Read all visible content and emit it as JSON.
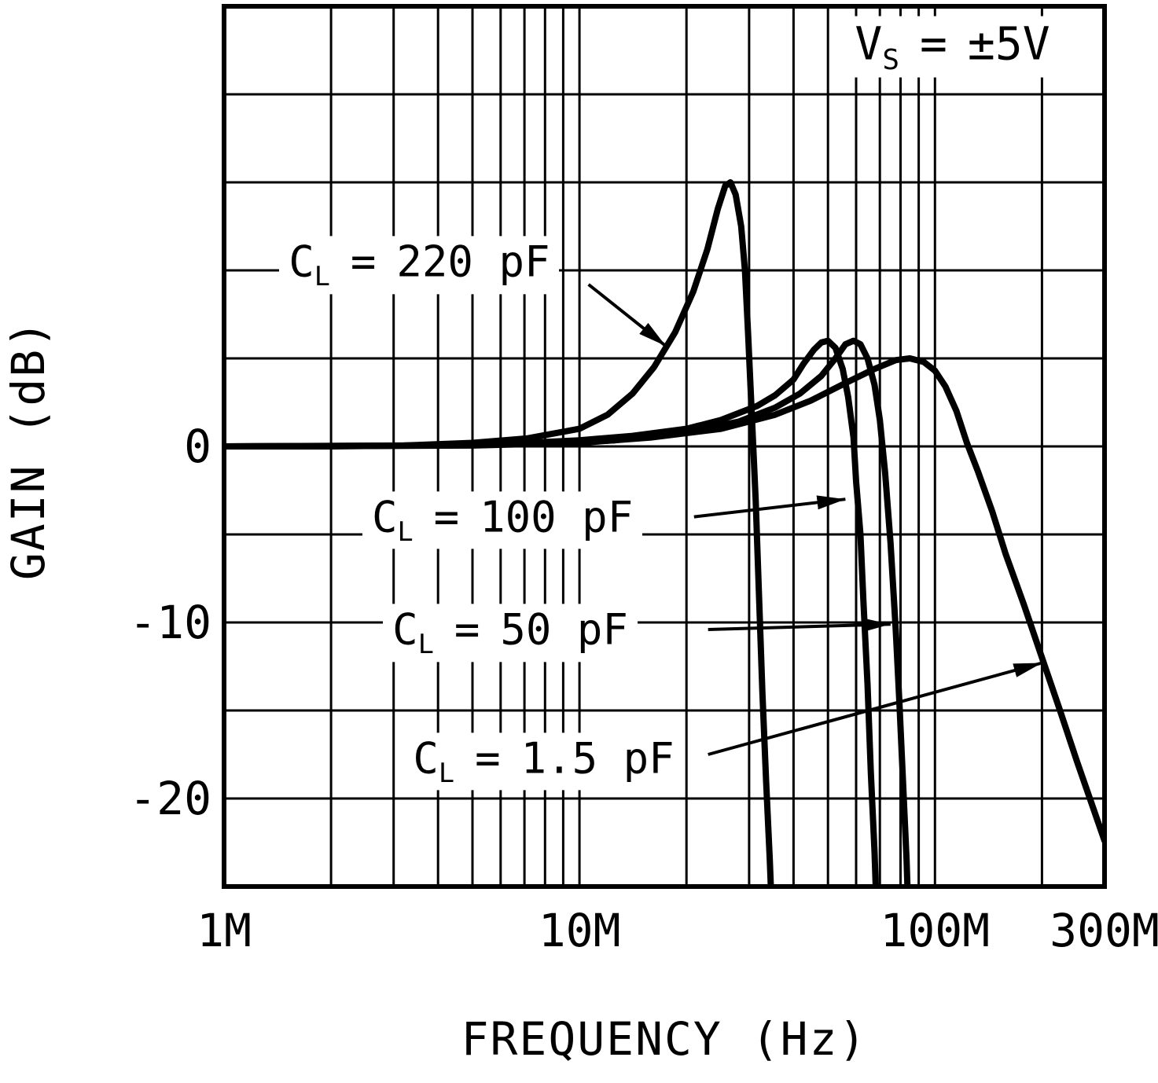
{
  "figure": {
    "x_axis_title": "FREQUENCY (Hz)",
    "y_axis_title": "GAIN (dB)"
  },
  "chart_data": {
    "type": "line",
    "x_scale": "log",
    "x_unit": "Hz",
    "y_unit": "dB",
    "x_range_hz": [
      1000000.0,
      300000000.0
    ],
    "y_range_db": [
      -25,
      25
    ],
    "y_grid_step_db": 5,
    "grid": true,
    "line_color": "#000000",
    "x_tick_labels": [
      {
        "f": 1000000.0,
        "label": "1M"
      },
      {
        "f": 10000000.0,
        "label": "10M"
      },
      {
        "f": 100000000.0,
        "label": "100M"
      },
      {
        "f": 300000000.0,
        "label": "300M"
      }
    ],
    "y_tick_labels": [
      {
        "g": 0,
        "label": "0"
      },
      {
        "g": -10,
        "label": "-10"
      },
      {
        "g": -20,
        "label": "-20"
      }
    ],
    "supply_note": {
      "c": "V",
      "sub": "S",
      "eq": "=",
      "val": "±5V",
      "anchor": {
        "f": 56000000.0,
        "g": 22.7
      }
    },
    "series": [
      {
        "name": "CL = 220 pF",
        "capacitance_pF": 220,
        "points": [
          [
            1000000.0,
            0
          ],
          [
            2000000.0,
            0
          ],
          [
            3200000.0,
            0.05
          ],
          [
            5000000.0,
            0.2
          ],
          [
            7100000.0,
            0.45
          ],
          [
            10000000.0,
            1.0
          ],
          [
            12000000.0,
            1.8
          ],
          [
            14100000.0,
            3.0
          ],
          [
            16200000.0,
            4.5
          ],
          [
            18600000.0,
            6.5
          ],
          [
            20900000.0,
            8.8
          ],
          [
            22900000.0,
            11.2
          ],
          [
            24500000.0,
            13.5
          ],
          [
            25700000.0,
            14.8
          ],
          [
            26600000.0,
            15.0
          ],
          [
            27500000.0,
            14.3
          ],
          [
            28500000.0,
            12.5
          ],
          [
            29200000.0,
            10.0
          ],
          [
            29800000.0,
            6.5
          ],
          [
            30500000.0,
            2.0
          ],
          [
            31300000.0,
            -3.0
          ],
          [
            32000000.0,
            -8.5
          ],
          [
            32700000.0,
            -14.0
          ],
          [
            33500000.0,
            -19.0
          ],
          [
            34300000.0,
            -23.5
          ],
          [
            34700000.0,
            -26.0
          ]
        ]
      },
      {
        "name": "CL = 100 pF",
        "capacitance_pF": 100,
        "points": [
          [
            1000000.0,
            0
          ],
          [
            3200000.0,
            0.05
          ],
          [
            6300000.0,
            0.15
          ],
          [
            10000000.0,
            0.35
          ],
          [
            14100000.0,
            0.6
          ],
          [
            20000000.0,
            1.0
          ],
          [
            25000000.0,
            1.5
          ],
          [
            31600000.0,
            2.3
          ],
          [
            35500000.0,
            2.9
          ],
          [
            40000000.0,
            3.8
          ],
          [
            42700000.0,
            4.7
          ],
          [
            45700000.0,
            5.5
          ],
          [
            47900000.0,
            5.9
          ],
          [
            50000000.0,
            6.0
          ],
          [
            52500000.0,
            5.6
          ],
          [
            55000000.0,
            4.4
          ],
          [
            57000000.0,
            2.8
          ],
          [
            59000000.0,
            0.5
          ],
          [
            60000000.0,
            -2.0
          ],
          [
            61700000.0,
            -5.0
          ],
          [
            63000000.0,
            -9.0
          ],
          [
            64600000.0,
            -13.5
          ],
          [
            66000000.0,
            -18.5
          ],
          [
            67600000.0,
            -23.0
          ],
          [
            68400000.0,
            -26.0
          ]
        ]
      },
      {
        "name": "CL = 50 pF",
        "capacitance_pF": 50,
        "points": [
          [
            1000000.0,
            0
          ],
          [
            4000000.0,
            0.05
          ],
          [
            7900000.0,
            0.15
          ],
          [
            12600000.0,
            0.35
          ],
          [
            20000000.0,
            0.8
          ],
          [
            28000000.0,
            1.4
          ],
          [
            35500000.0,
            2.2
          ],
          [
            41700000.0,
            3.0
          ],
          [
            47900000.0,
            4.0
          ],
          [
            52500000.0,
            5.0
          ],
          [
            56000000.0,
            5.8
          ],
          [
            59000000.0,
            6.0
          ],
          [
            61700000.0,
            5.8
          ],
          [
            64600000.0,
            5.0
          ],
          [
            67600000.0,
            3.5
          ],
          [
            70000000.0,
            1.5
          ],
          [
            72400000.0,
            -1.5
          ],
          [
            75000000.0,
            -5.5
          ],
          [
            77600000.0,
            -10.5
          ],
          [
            79400000.0,
            -14.5
          ],
          [
            81300000.0,
            -19.0
          ],
          [
            83200000.0,
            -23.5
          ],
          [
            84000000.0,
            -26.0
          ]
        ]
      },
      {
        "name": "CL = 1.5 pF",
        "capacitance_pF": 1.5,
        "points": [
          [
            1000000.0,
            0
          ],
          [
            5000000.0,
            0.05
          ],
          [
            10000000.0,
            0.2
          ],
          [
            15800000.0,
            0.5
          ],
          [
            25000000.0,
            1.0
          ],
          [
            35500000.0,
            1.8
          ],
          [
            44700000.0,
            2.6
          ],
          [
            56000000.0,
            3.6
          ],
          [
            67600000.0,
            4.4
          ],
          [
            77600000.0,
            4.9
          ],
          [
            85000000.0,
            5.0
          ],
          [
            93000000.0,
            4.8
          ],
          [
            100000000.0,
            4.3
          ],
          [
            107000000.0,
            3.4
          ],
          [
            115000000.0,
            2.0
          ],
          [
            123000000.0,
            0.2
          ],
          [
            132000000.0,
            -1.4
          ],
          [
            145000000.0,
            -3.7
          ],
          [
            158000000.0,
            -6.1
          ],
          [
            178000000.0,
            -9.0
          ],
          [
            200000000.0,
            -12.0
          ],
          [
            224000000.0,
            -14.9
          ],
          [
            251000000.0,
            -17.9
          ],
          [
            275000000.0,
            -20.2
          ],
          [
            300000000.0,
            -22.4
          ]
        ]
      }
    ],
    "labels": [
      {
        "c": "C",
        "sub": "L",
        "eq": "=",
        "val": "220 pF",
        "anchor": {
          "f": 1430000.0,
          "g": 10.3
        },
        "arrow": {
          "from": {
            "f": 10600000.0,
            "g": 9.2
          },
          "to": {
            "f": 17500000.0,
            "g": 5.7
          }
        }
      },
      {
        "c": "C",
        "sub": "L",
        "eq": "=",
        "val": "100 pF",
        "anchor": {
          "f": 2450000.0,
          "g": -4.2
        },
        "arrow": {
          "from": {
            "f": 21000000.0,
            "g": -4.0
          },
          "to": {
            "f": 56000000.0,
            "g": -3.0
          }
        }
      },
      {
        "c": "C",
        "sub": "L",
        "eq": "=",
        "val": "50 pF",
        "anchor": {
          "f": 2800000.0,
          "g": -10.6
        },
        "arrow": {
          "from": {
            "f": 23000000.0,
            "g": -10.4
          },
          "to": {
            "f": 75000000.0,
            "g": -10.1
          }
        }
      },
      {
        "c": "C",
        "sub": "L",
        "eq": "=",
        "val": "1.5 pF",
        "anchor": {
          "f": 3200000.0,
          "g": -17.9
        },
        "arrow": {
          "from": {
            "f": 23000000.0,
            "g": -17.5
          },
          "to": {
            "f": 200000000.0,
            "g": -12.3
          }
        }
      }
    ]
  }
}
